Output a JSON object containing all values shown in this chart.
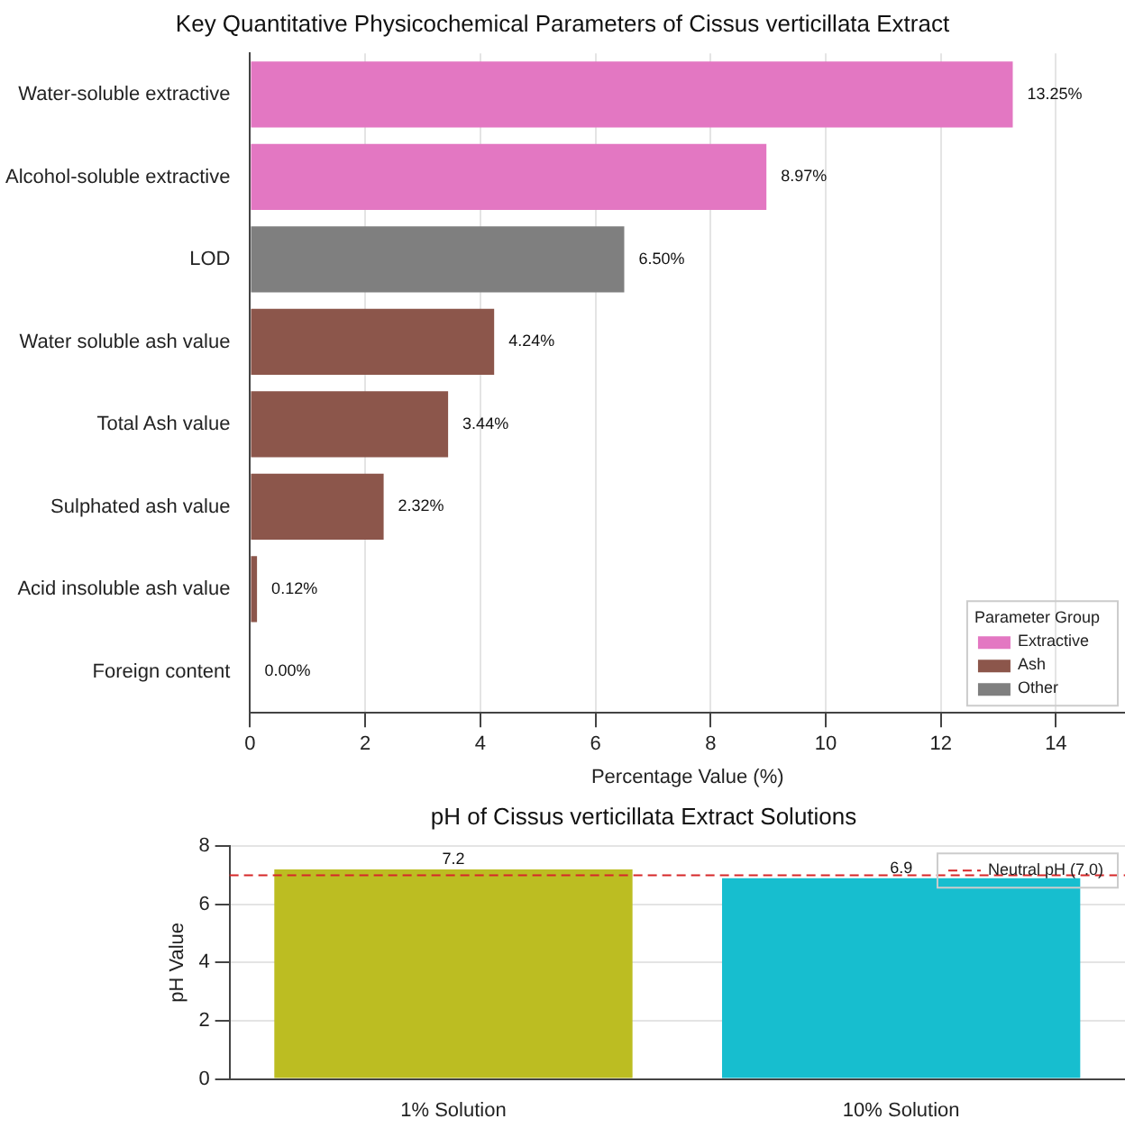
{
  "chart_data": [
    {
      "type": "bar",
      "title": "Key Quantitative Physicochemical Parameters of Cissus verticillata Extract",
      "orientation": "horizontal",
      "stacked": true,
      "xlabel": "Percentage Value (%)",
      "categories": [
        "Water-soluble extractive",
        "Alcohol-soluble extractive",
        "LOD",
        "Water soluble ash value",
        "Total Ash value",
        "Sulphated ash value",
        "Acid insoluble ash value",
        "Foreign content"
      ],
      "series": [
        {
          "name": "Extractive",
          "color": "#e377c2",
          "values": [
            13.25,
            8.97,
            null,
            null,
            null,
            null,
            null,
            null
          ],
          "value_labels": [
            "13.25%",
            "8.97%",
            null,
            null,
            null,
            null,
            null,
            null
          ]
        },
        {
          "name": "Ash",
          "color": "#8c564b",
          "values": [
            null,
            null,
            null,
            4.24,
            3.44,
            2.32,
            0.12,
            0
          ],
          "value_labels": [
            null,
            null,
            null,
            "4.24%",
            "3.44%",
            "2.32%",
            "0.12%",
            "0.00%"
          ]
        },
        {
          "name": "Other",
          "color": "#7f7f7f",
          "values": [
            null,
            null,
            6.5,
            null,
            null,
            null,
            null,
            null
          ],
          "value_labels": [
            null,
            null,
            "6.50%",
            null,
            null,
            null,
            null,
            null
          ]
        }
      ],
      "xlim": [
        0,
        15.2
      ],
      "xticks": [
        0,
        2,
        4,
        6,
        8,
        10,
        12,
        14
      ],
      "grid": "x",
      "legend": "bottom right",
      "legend_title": "Parameter Group"
    },
    {
      "type": "bar",
      "title": "pH of Cissus verticillata Extract Solutions",
      "ylabel": "pH Value",
      "categories": [
        "1% Solution",
        "10% Solution"
      ],
      "values": [
        7.2,
        6.9
      ],
      "colors": [
        "#bcbd22",
        "#17becf"
      ],
      "data_labels": true,
      "ylim": [
        0,
        8
      ],
      "yticks": [
        0,
        2,
        4,
        6,
        8
      ],
      "grid": "y",
      "legend": "top right",
      "ref_lines": [
        {
          "axis": "y",
          "value": 7.0,
          "label": "Neutral pH (7.0)",
          "color": "#d62728",
          "line_style": "dashed"
        }
      ]
    }
  ]
}
